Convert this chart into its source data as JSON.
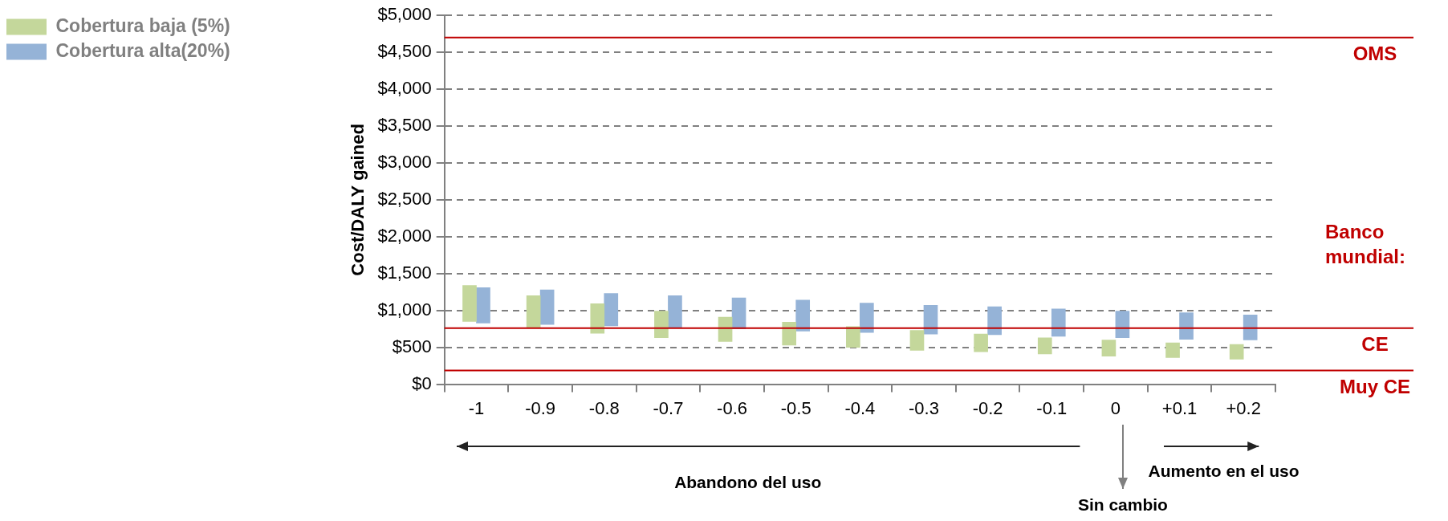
{
  "chart_data": {
    "type": "bar",
    "ylabel": "Cost/DALY gained",
    "categories": [
      "-1",
      "-0.9",
      "-0.8",
      "-0.7",
      "-0.6",
      "-0.5",
      "-0.4",
      "-0.3",
      "-0.2",
      "-0.1",
      "0",
      "+0.1",
      "+0.2"
    ],
    "series": [
      {
        "name": "Cobertura baja (5%)",
        "color": "#c4d79b",
        "base": [
          850,
          770,
          690,
          630,
          580,
          530,
          500,
          460,
          440,
          410,
          380,
          360,
          340
        ],
        "values": [
          490,
          430,
          400,
          360,
          330,
          310,
          280,
          270,
          240,
          220,
          220,
          200,
          200
        ]
      },
      {
        "name": "Cobertura alta(20%)",
        "color": "#95b3d7",
        "base": [
          830,
          810,
          790,
          770,
          750,
          720,
          700,
          680,
          670,
          650,
          630,
          610,
          600
        ],
        "values": [
          480,
          470,
          440,
          430,
          420,
          420,
          400,
          390,
          380,
          370,
          360,
          360,
          340
        ]
      }
    ],
    "ylim": [
      0,
      5000
    ],
    "yticks": [
      {
        "value": 0,
        "label": "$0"
      },
      {
        "value": 500,
        "label": "$500"
      },
      {
        "value": 1000,
        "label": "$1,000"
      },
      {
        "value": 1500,
        "label": "$1,500"
      },
      {
        "value": 2000,
        "label": "$2,000"
      },
      {
        "value": 2500,
        "label": "$2,500"
      },
      {
        "value": 3000,
        "label": "$3,000"
      },
      {
        "value": 3500,
        "label": "$3,500"
      },
      {
        "value": 4000,
        "label": "$4,000"
      },
      {
        "value": 4500,
        "label": "$4,500"
      },
      {
        "value": 5000,
        "label": "$5,000"
      }
    ],
    "ref_lines": [
      {
        "axis": "y",
        "value": 4700,
        "label": "OMS",
        "color": "#c00000"
      },
      {
        "axis": "y",
        "value": 760,
        "label": "CE",
        "color": "#c00000"
      },
      {
        "axis": "y",
        "value": 185,
        "label": "Muy CE",
        "color": "#c00000"
      }
    ],
    "annotations": [
      "Banco mundial:",
      "Abandono del uso",
      "Sin cambio",
      "Aumento en el uso"
    ],
    "grid": "y",
    "legend": "top left"
  }
}
